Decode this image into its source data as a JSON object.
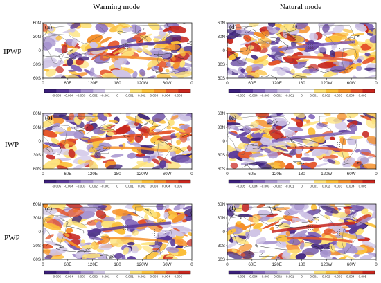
{
  "chart_data": {
    "type": "heatmap",
    "column_titles": [
      "Warming mode",
      "Natural mode"
    ],
    "row_labels": [
      "IPWP",
      "IWP",
      "PWP"
    ],
    "lat_ticks": [
      "60N",
      "30N",
      "0",
      "30S",
      "60S"
    ],
    "lon_ticks": [
      "0",
      "60E",
      "120E",
      "180",
      "120W",
      "60W",
      "0"
    ],
    "xlim": [
      0,
      360
    ],
    "ylim": [
      -60,
      60
    ],
    "grid": false,
    "colorbar": {
      "ticks": [
        "-0.005",
        "-0.004",
        "-0.003",
        "-0.002",
        "-0.001",
        "0",
        "0.001",
        "0.002",
        "0.003",
        "0.004",
        "0.005"
      ],
      "colors": [
        "#3b1f7a",
        "#5b3a9a",
        "#8063b8",
        "#a794cf",
        "#cfc4e6",
        "#ffffff",
        "#ffffff",
        "#fde27a",
        "#fbbf3a",
        "#f5902a",
        "#e5552a",
        "#c7261e"
      ]
    },
    "panels": [
      {
        "label": "(a)",
        "column": "Warming mode",
        "row": "IPWP"
      },
      {
        "label": "(b)",
        "column": "Warming mode",
        "row": "IWP"
      },
      {
        "label": "(c)",
        "column": "Warming mode",
        "row": "PWP"
      },
      {
        "label": "(d)",
        "column": "Natural mode",
        "row": "IPWP"
      },
      {
        "label": "(e)",
        "column": "Natural mode",
        "row": "IWP"
      },
      {
        "label": "(f)",
        "column": "Natural mode",
        "row": "PWP"
      }
    ]
  }
}
